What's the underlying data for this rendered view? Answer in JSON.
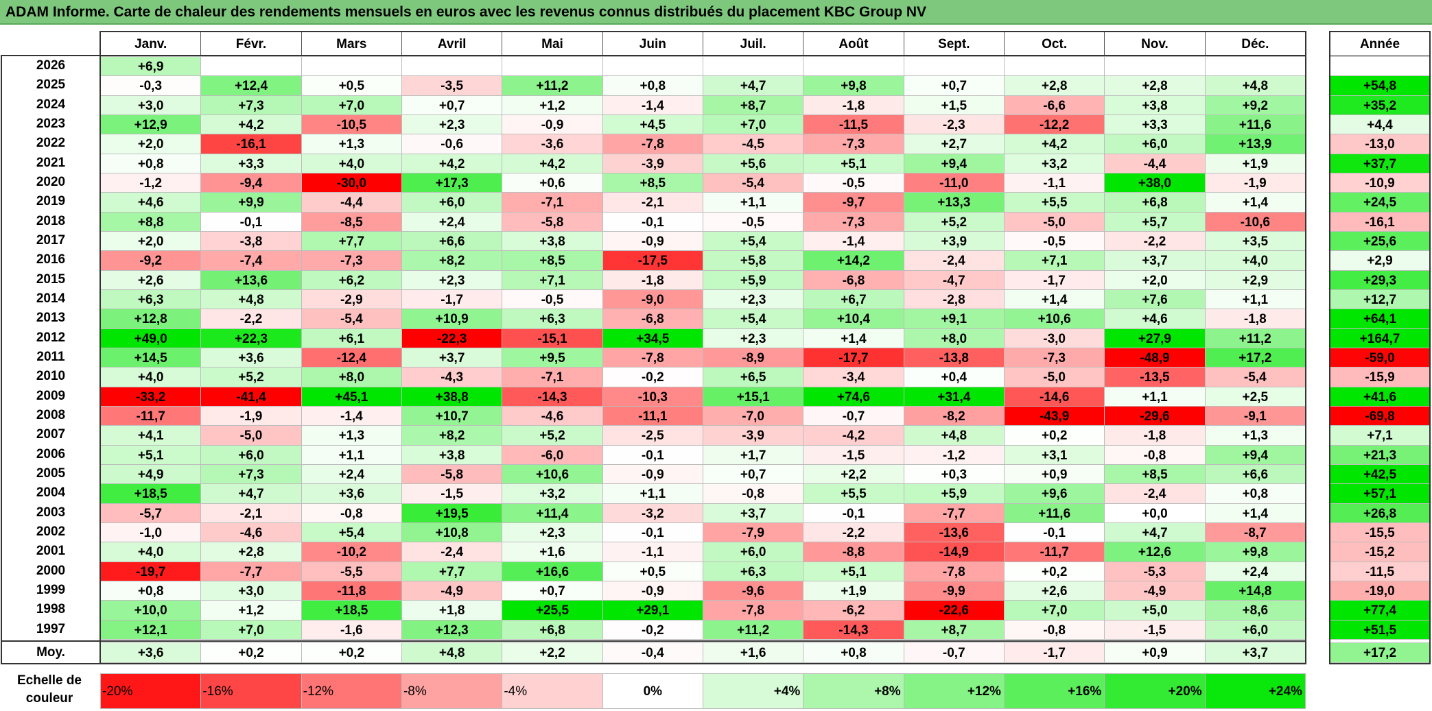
{
  "title": "ADAM Informe. Carte de chaleur des rendements mensuels en euros avec les revenus connus distribués du placement KBC Group NV",
  "colors": {
    "title_bg": "#7dc87d",
    "negative": "#ff0000",
    "positive": "#00e600",
    "neutral": "#ffffff"
  },
  "chart_data": {
    "type": "heatmap",
    "title": "ADAM Informe. Carte de chaleur des rendements mensuels en euros avec les revenus connus distribués du placement KBC Group NV",
    "columns": [
      "Janv.",
      "Févr.",
      "Mars",
      "Avril",
      "Mai",
      "Juin",
      "Juil.",
      "Août",
      "Sept.",
      "Oct.",
      "Nov.",
      "Déc."
    ],
    "year_header": "Année",
    "average_label": "Moy.",
    "rows": [
      {
        "year": "2026",
        "months": [
          "+6,9",
          "",
          "",
          "",
          "",
          "",
          "",
          "",
          "",
          "",
          "",
          ""
        ],
        "annual": ""
      },
      {
        "year": "2025",
        "months": [
          "-0,3",
          "+12,4",
          "+0,5",
          "-3,5",
          "+11,2",
          "+0,8",
          "+4,7",
          "+9,8",
          "+0,7",
          "+2,8",
          "+2,8",
          "+4,8"
        ],
        "annual": "+54,8"
      },
      {
        "year": "2024",
        "months": [
          "+3,0",
          "+7,3",
          "+7,0",
          "+0,7",
          "+1,2",
          "-1,4",
          "+8,7",
          "-1,8",
          "+1,5",
          "-6,6",
          "+3,8",
          "+9,2"
        ],
        "annual": "+35,2"
      },
      {
        "year": "2023",
        "months": [
          "+12,9",
          "+4,2",
          "-10,5",
          "+2,3",
          "-0,9",
          "+4,5",
          "+7,0",
          "-11,5",
          "-2,3",
          "-12,2",
          "+3,3",
          "+11,6"
        ],
        "annual": "+4,4"
      },
      {
        "year": "2022",
        "months": [
          "+2,0",
          "-16,1",
          "+1,3",
          "-0,6",
          "-3,6",
          "-7,8",
          "-4,5",
          "-7,3",
          "+2,7",
          "+4,2",
          "+6,0",
          "+13,9"
        ],
        "annual": "-13,0"
      },
      {
        "year": "2021",
        "months": [
          "+0,8",
          "+3,3",
          "+4,0",
          "+4,2",
          "+4,2",
          "-3,9",
          "+5,6",
          "+5,1",
          "+9,4",
          "+3,2",
          "-4,4",
          "+1,9"
        ],
        "annual": "+37,7"
      },
      {
        "year": "2020",
        "months": [
          "-1,2",
          "-9,4",
          "-30,0",
          "+17,3",
          "+0,6",
          "+8,5",
          "-5,4",
          "-0,5",
          "-11,0",
          "-1,1",
          "+38,0",
          "-1,9"
        ],
        "annual": "-10,9"
      },
      {
        "year": "2019",
        "months": [
          "+4,6",
          "+9,9",
          "-4,4",
          "+6,0",
          "-7,1",
          "-2,1",
          "+1,1",
          "-9,7",
          "+13,3",
          "+5,5",
          "+6,8",
          "+1,4"
        ],
        "annual": "+24,5"
      },
      {
        "year": "2018",
        "months": [
          "+8,8",
          "-0,1",
          "-8,5",
          "+2,4",
          "-5,8",
          "-0,1",
          "-0,5",
          "-7,3",
          "+5,2",
          "-5,0",
          "+5,7",
          "-10,6"
        ],
        "annual": "-16,1"
      },
      {
        "year": "2017",
        "months": [
          "+2,0",
          "-3,8",
          "+7,7",
          "+6,6",
          "+3,8",
          "-0,9",
          "+5,4",
          "-1,4",
          "+3,9",
          "-0,5",
          "-2,2",
          "+3,5"
        ],
        "annual": "+25,6"
      },
      {
        "year": "2016",
        "months": [
          "-9,2",
          "-7,4",
          "-7,3",
          "+8,2",
          "+8,5",
          "-17,5",
          "+5,8",
          "+14,2",
          "-2,4",
          "+7,1",
          "+3,7",
          "+4,0"
        ],
        "annual": "+2,9"
      },
      {
        "year": "2015",
        "months": [
          "+2,6",
          "+13,6",
          "+6,2",
          "+2,3",
          "+7,1",
          "-1,8",
          "+5,9",
          "-6,8",
          "-4,7",
          "-1,7",
          "+2,0",
          "+2,9"
        ],
        "annual": "+29,3"
      },
      {
        "year": "2014",
        "months": [
          "+6,3",
          "+4,8",
          "-2,9",
          "-1,7",
          "-0,5",
          "-9,0",
          "+2,3",
          "+6,7",
          "-2,8",
          "+1,4",
          "+7,6",
          "+1,1"
        ],
        "annual": "+12,7"
      },
      {
        "year": "2013",
        "months": [
          "+12,8",
          "-2,2",
          "-5,4",
          "+10,9",
          "+6,3",
          "-6,8",
          "+5,4",
          "+10,4",
          "+9,1",
          "+10,6",
          "+4,6",
          "-1,8"
        ],
        "annual": "+64,1"
      },
      {
        "year": "2012",
        "months": [
          "+49,0",
          "+22,3",
          "+6,1",
          "-22,3",
          "-15,1",
          "+34,5",
          "+2,3",
          "+1,4",
          "+8,0",
          "-3,0",
          "+27,9",
          "+11,2"
        ],
        "annual": "+164,7"
      },
      {
        "year": "2011",
        "months": [
          "+14,5",
          "+3,6",
          "-12,4",
          "+3,7",
          "+9,5",
          "-7,8",
          "-8,9",
          "-17,7",
          "-13,8",
          "-7,3",
          "-48,9",
          "+17,2"
        ],
        "annual": "-59,0"
      },
      {
        "year": "2010",
        "months": [
          "+4,0",
          "+5,2",
          "+8,0",
          "-4,3",
          "-7,1",
          "-0,2",
          "+6,5",
          "-3,4",
          "+0,4",
          "-5,0",
          "-13,5",
          "-5,4"
        ],
        "annual": "-15,9"
      },
      {
        "year": "2009",
        "months": [
          "-33,2",
          "-41,4",
          "+45,1",
          "+38,8",
          "-14,3",
          "-10,3",
          "+15,1",
          "+74,6",
          "+31,4",
          "-14,6",
          "+1,1",
          "+2,5"
        ],
        "annual": "+41,6"
      },
      {
        "year": "2008",
        "months": [
          "-11,7",
          "-1,9",
          "-1,4",
          "+10,7",
          "-4,6",
          "-11,1",
          "-7,0",
          "-0,7",
          "-8,2",
          "-43,9",
          "-29,6",
          "-9,1"
        ],
        "annual": "-69,8"
      },
      {
        "year": "2007",
        "months": [
          "+4,1",
          "-5,0",
          "+1,3",
          "+8,2",
          "+5,2",
          "-2,5",
          "-3,9",
          "-4,2",
          "+4,8",
          "+0,2",
          "-1,8",
          "+1,3"
        ],
        "annual": "+7,1"
      },
      {
        "year": "2006",
        "months": [
          "+5,1",
          "+6,0",
          "+1,1",
          "+3,8",
          "-6,0",
          "-0,1",
          "+1,7",
          "-1,5",
          "-1,2",
          "+3,1",
          "-0,8",
          "+9,4"
        ],
        "annual": "+21,3"
      },
      {
        "year": "2005",
        "months": [
          "+4,9",
          "+7,3",
          "+2,4",
          "-5,8",
          "+10,6",
          "-0,9",
          "+0,7",
          "+2,2",
          "+0,3",
          "+0,9",
          "+8,5",
          "+6,6"
        ],
        "annual": "+42,5"
      },
      {
        "year": "2004",
        "months": [
          "+18,5",
          "+4,7",
          "+3,6",
          "-1,5",
          "+3,2",
          "+1,1",
          "-0,8",
          "+5,5",
          "+5,9",
          "+9,6",
          "-2,4",
          "+0,8"
        ],
        "annual": "+57,1"
      },
      {
        "year": "2003",
        "months": [
          "-5,7",
          "-2,1",
          "-0,8",
          "+19,5",
          "+11,4",
          "-3,2",
          "+3,7",
          "-0,1",
          "-7,7",
          "+11,6",
          "+0,0",
          "+1,4"
        ],
        "annual": "+26,8"
      },
      {
        "year": "2002",
        "months": [
          "-1,0",
          "-4,6",
          "+5,4",
          "+10,8",
          "+2,3",
          "-0,1",
          "-7,9",
          "-2,2",
          "-13,6",
          "-0,1",
          "+4,7",
          "-8,7"
        ],
        "annual": "-15,5"
      },
      {
        "year": "2001",
        "months": [
          "+4,0",
          "+2,8",
          "-10,2",
          "-2,4",
          "+1,6",
          "-1,1",
          "+6,0",
          "-8,8",
          "-14,9",
          "-11,7",
          "+12,6",
          "+9,8"
        ],
        "annual": "-15,2"
      },
      {
        "year": "2000",
        "months": [
          "-19,7",
          "-7,7",
          "-5,5",
          "+7,7",
          "+16,6",
          "+0,5",
          "+6,3",
          "+5,1",
          "-7,8",
          "+0,2",
          "-5,3",
          "+2,4"
        ],
        "annual": "-11,5"
      },
      {
        "year": "1999",
        "months": [
          "+0,8",
          "+3,0",
          "-11,8",
          "-4,9",
          "+0,7",
          "-0,9",
          "-9,6",
          "+1,9",
          "-9,9",
          "+2,6",
          "-4,9",
          "+14,8"
        ],
        "annual": "-19,0"
      },
      {
        "year": "1998",
        "months": [
          "+10,0",
          "+1,2",
          "+18,5",
          "+1,8",
          "+25,5",
          "+29,1",
          "-7,8",
          "-6,2",
          "-22,6",
          "+7,0",
          "+5,0",
          "+8,6"
        ],
        "annual": "+77,4"
      },
      {
        "year": "1997",
        "months": [
          "+12,1",
          "+7,0",
          "-1,6",
          "+12,3",
          "+6,8",
          "-0,2",
          "+11,2",
          "-14,3",
          "+8,7",
          "-0,8",
          "-1,5",
          "+6,0"
        ],
        "annual": "+51,5"
      }
    ],
    "average": {
      "months": [
        "+3,6",
        "+0,2",
        "+0,2",
        "+4,8",
        "+2,2",
        "-0,4",
        "+1,6",
        "+0,8",
        "-0,7",
        "-1,7",
        "+0,9",
        "+3,7"
      ],
      "annual": "+17,2"
    },
    "scale": {
      "label": "Echelle de couleur",
      "stops": [
        "-20%",
        "-16%",
        "-12%",
        "-8%",
        "-4%",
        "0%",
        "+4%",
        "+8%",
        "+12%",
        "+16%",
        "+20%",
        "+24%"
      ]
    }
  }
}
